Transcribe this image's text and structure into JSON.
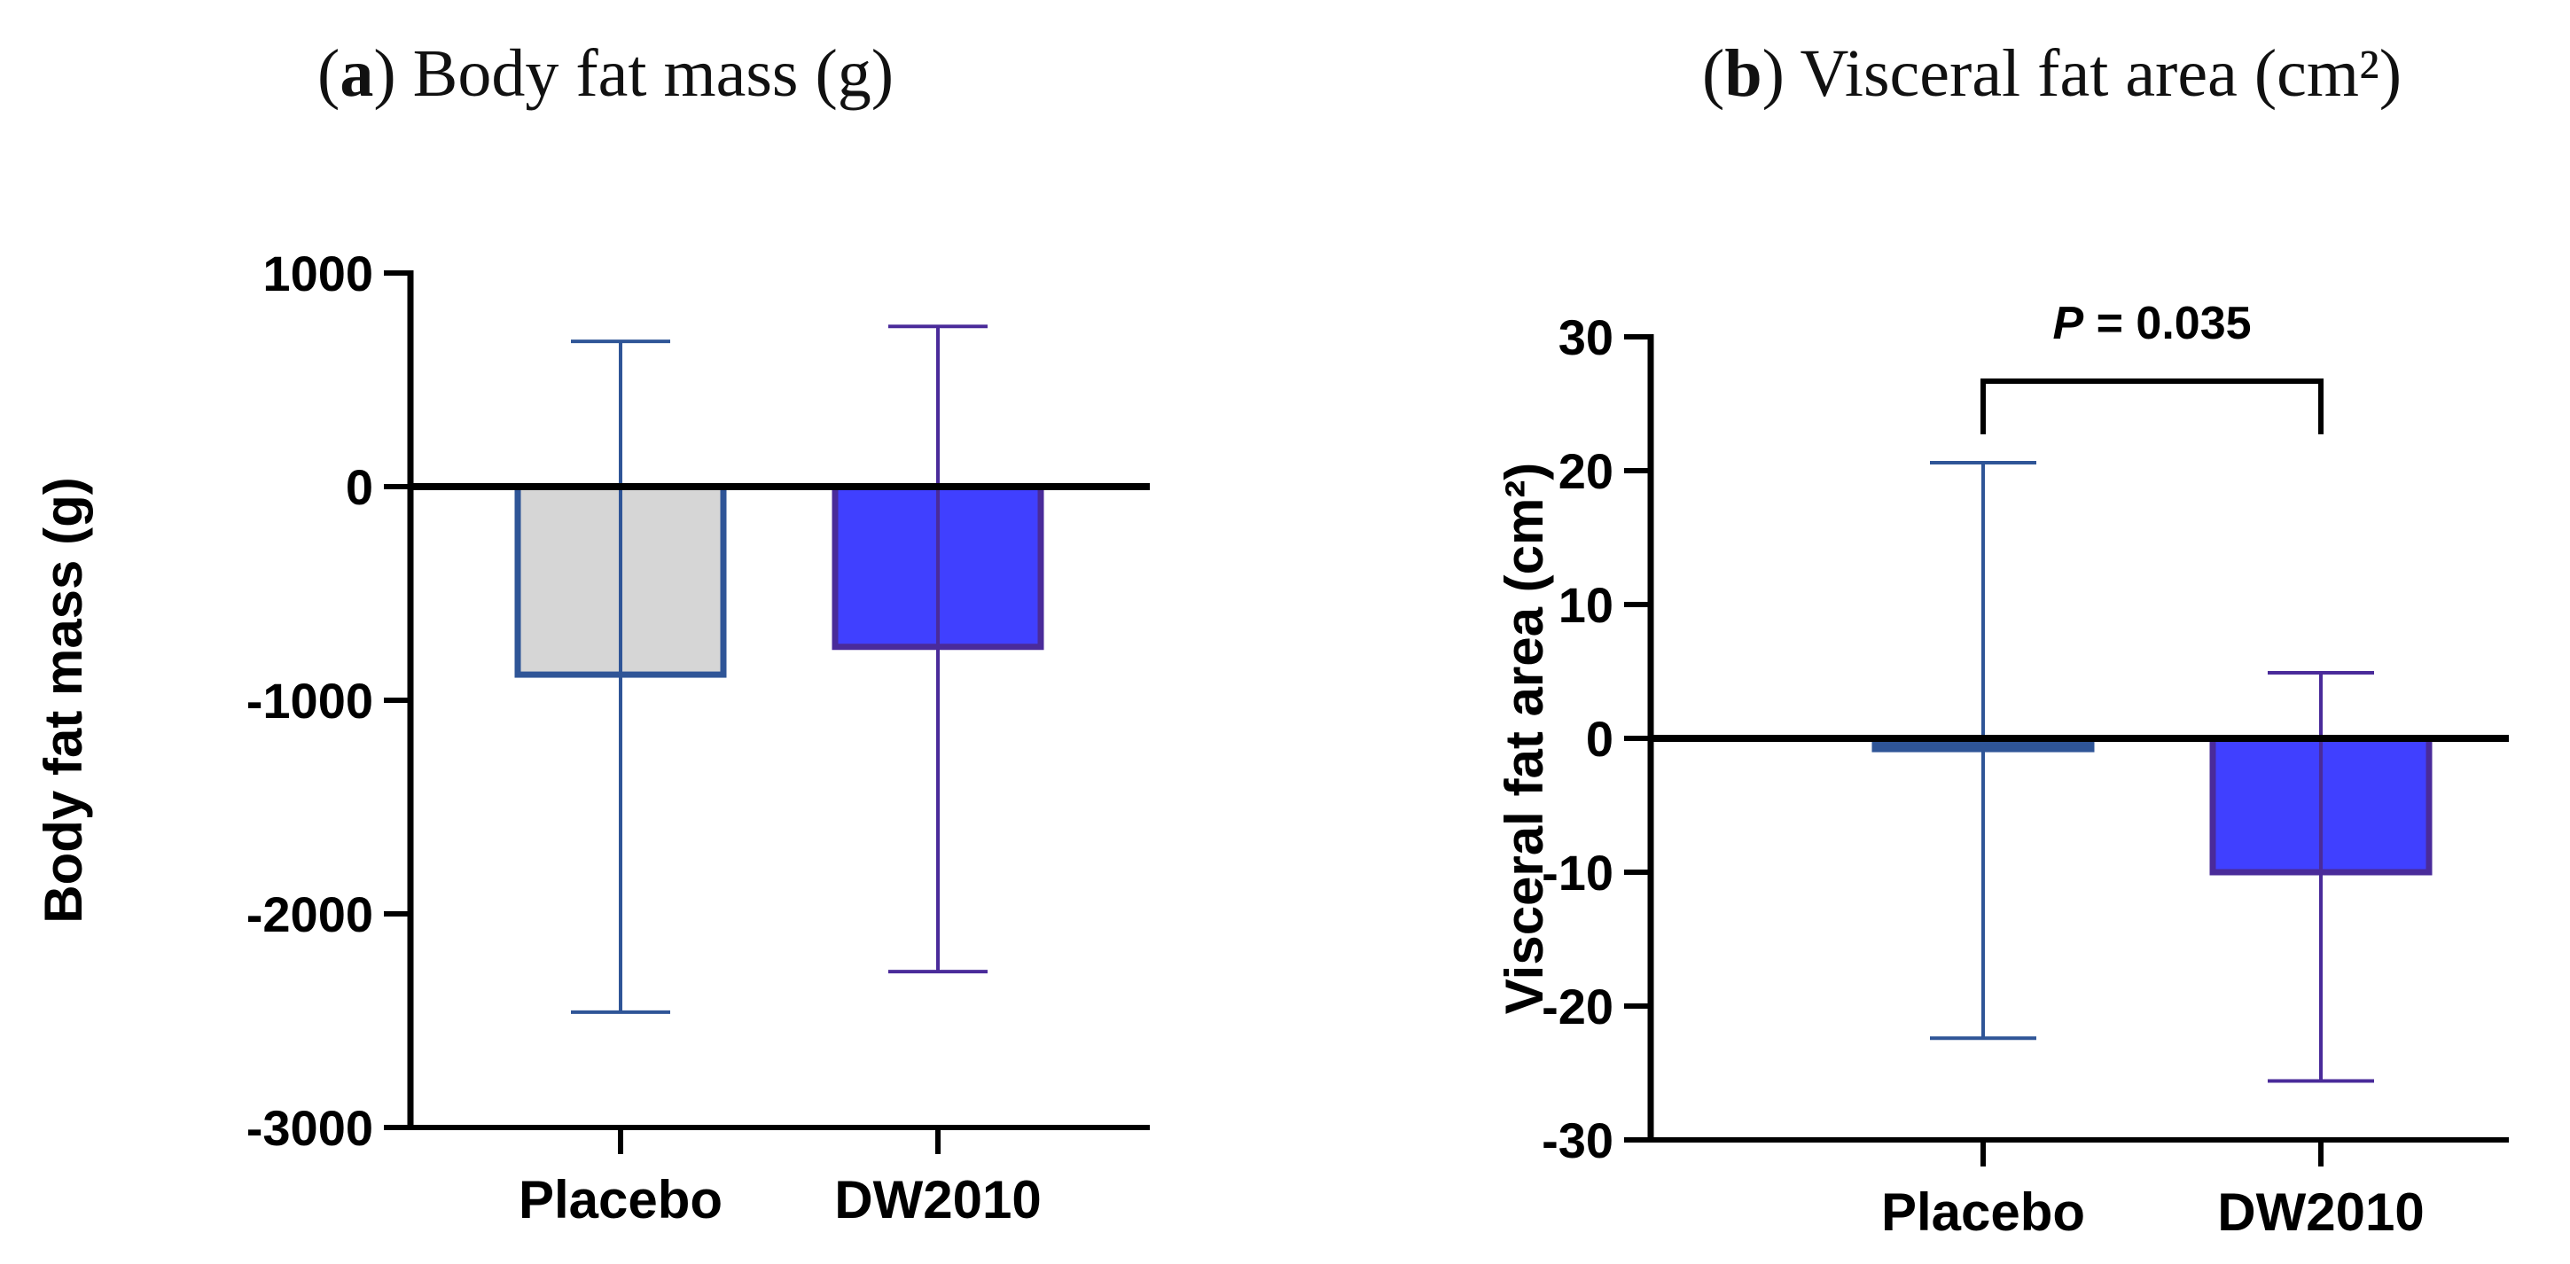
{
  "chart_data": [
    {
      "type": "bar",
      "panel_letter": "a",
      "panel_title": "Body fat mass (g)",
      "ylabel": "Body fat mass (g)",
      "xlabel": "",
      "ylim": [
        -3000,
        1000
      ],
      "yticks": [
        1000,
        0,
        -1000,
        -2000,
        -3000
      ],
      "categories": [
        "Placebo",
        "DW2010"
      ],
      "values": [
        -880,
        -750
      ],
      "error_upper": [
        680,
        750
      ],
      "error_lower": [
        -2460,
        -2270
      ],
      "fill_colors": [
        "#d6d6d6",
        "#4040ff"
      ],
      "edge_colors": [
        "#2f5597",
        "#4a2b9a"
      ],
      "annotation": null
    },
    {
      "type": "bar",
      "panel_letter": "b",
      "panel_title": "Visceral fat area (cm²)",
      "ylabel": "Visceral fat area (cm²)",
      "xlabel": "",
      "ylim": [
        -30,
        30
      ],
      "yticks": [
        30,
        20,
        10,
        0,
        -10,
        -20,
        -30
      ],
      "categories": [
        "Placebo",
        "DW2010"
      ],
      "values": [
        -0.8,
        -10
      ],
      "error_upper": [
        20.6,
        4.9
      ],
      "error_lower": [
        -22.4,
        -25.6
      ],
      "fill_colors": [
        "#2f5597",
        "#4040ff"
      ],
      "edge_colors": [
        "#2f5597",
        "#4a2b9a"
      ],
      "annotation": {
        "label_italic": "P",
        "label_rest": " = 0.035"
      }
    }
  ]
}
